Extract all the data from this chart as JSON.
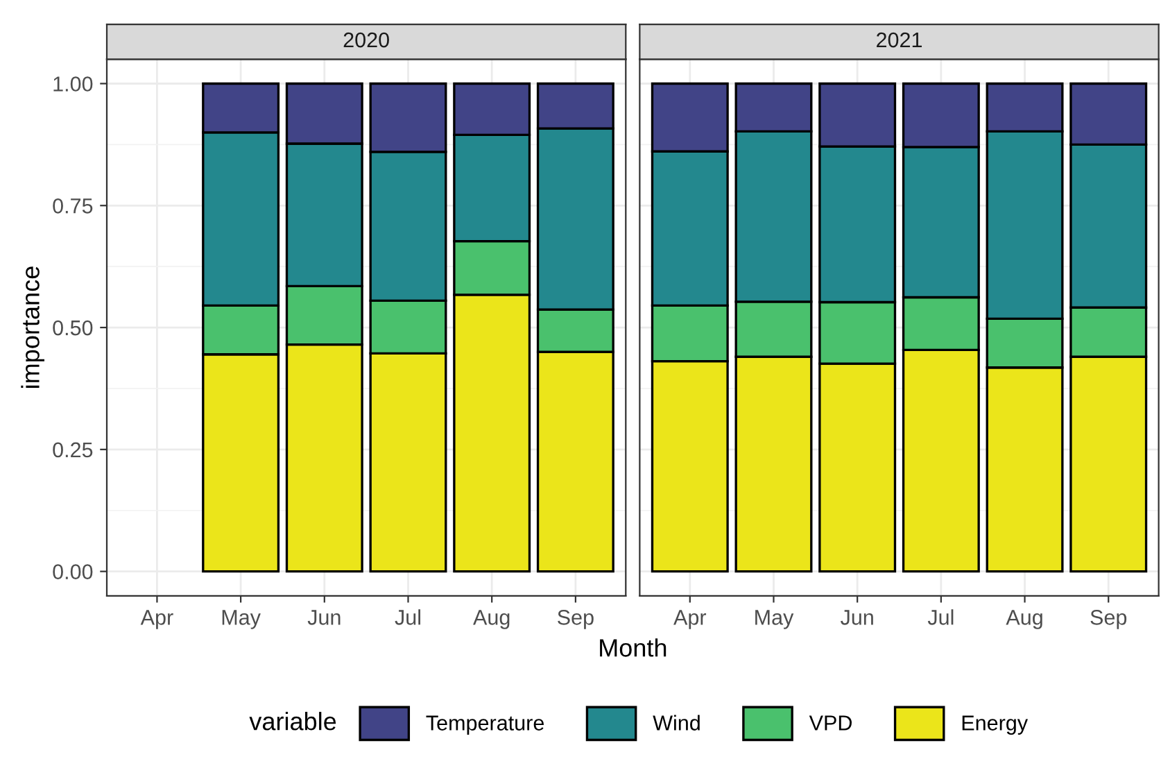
{
  "chart_data": [
    {
      "type": "bar",
      "title": "2020",
      "stacked": true,
      "xlabel": "Month",
      "ylabel": "importance",
      "legend": "bottom",
      "legend_title": "variable",
      "grid": true,
      "categories": [
        "Apr",
        "May",
        "Jun",
        "Jul",
        "Aug",
        "Sep"
      ],
      "ylim": [
        -0.05,
        1.05
      ],
      "yticks": [
        {
          "value": 0,
          "label": "0.00"
        },
        {
          "value": 0.25,
          "label": "0.25"
        },
        {
          "value": 0.5,
          "label": "0.50"
        },
        {
          "value": 0.75,
          "label": "0.75"
        },
        {
          "value": 1,
          "label": "1.00"
        }
      ],
      "series": [
        {
          "name": "Energy",
          "color": "#ebe51a",
          "values": [
            null,
            0.445,
            0.465,
            0.447,
            0.567,
            0.45
          ]
        },
        {
          "name": "VPD",
          "color": "#4ac16d",
          "values": [
            null,
            0.1,
            0.12,
            0.108,
            0.11,
            0.087
          ]
        },
        {
          "name": "Wind",
          "color": "#23888e",
          "values": [
            null,
            0.355,
            0.292,
            0.305,
            0.218,
            0.371
          ]
        },
        {
          "name": "Temperature",
          "color": "#414487",
          "values": [
            null,
            0.1,
            0.123,
            0.14,
            0.105,
            0.092
          ]
        }
      ]
    },
    {
      "type": "bar",
      "title": "2021",
      "stacked": true,
      "grid": true,
      "tick_labels": "x",
      "categories": [
        "Apr",
        "May",
        "Jun",
        "Jul",
        "Aug",
        "Sep"
      ],
      "ylim": [
        -0.05,
        1.05
      ],
      "yticks": [
        {
          "value": 0,
          "label": null
        },
        {
          "value": 0.25,
          "label": null
        },
        {
          "value": 0.5,
          "label": null
        },
        {
          "value": 0.75,
          "label": null
        },
        {
          "value": 1,
          "label": null
        }
      ],
      "series": [
        {
          "color": "#ebe51a",
          "values": [
            0.431,
            0.44,
            0.426,
            0.454,
            0.418,
            0.44
          ]
        },
        {
          "color": "#4ac16d",
          "values": [
            0.114,
            0.113,
            0.126,
            0.108,
            0.1,
            0.101
          ]
        },
        {
          "color": "#23888e",
          "values": [
            0.316,
            0.349,
            0.319,
            0.308,
            0.384,
            0.334
          ]
        },
        {
          "color": "#414487",
          "values": [
            0.139,
            0.098,
            0.129,
            0.13,
            0.098,
            0.125
          ]
        }
      ]
    }
  ]
}
